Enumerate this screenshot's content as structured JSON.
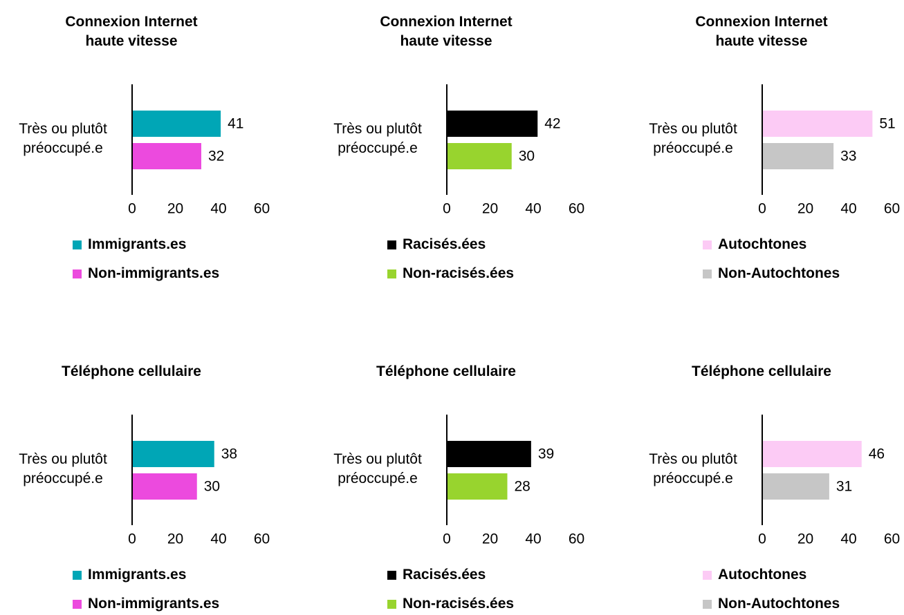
{
  "chart_data": [
    {
      "type": "bar",
      "orientation": "horizontal",
      "title": "Connexion Internet haute vitesse",
      "categories": [
        "Très ou plutôt préoccupé.e"
      ],
      "series": [
        {
          "name": "Immigrants.es",
          "color": "#00a6b6",
          "values": [
            41
          ]
        },
        {
          "name": "Non-immigrants.es",
          "color": "#ec4ade",
          "values": [
            32
          ]
        }
      ],
      "xlim": [
        0,
        60
      ],
      "xticks": [
        0,
        20,
        40,
        60
      ]
    },
    {
      "type": "bar",
      "orientation": "horizontal",
      "title": "Connexion Internet haute vitesse",
      "categories": [
        "Très ou plutôt préoccupé.e"
      ],
      "series": [
        {
          "name": "Racisés.ées",
          "color": "#000000",
          "values": [
            42
          ]
        },
        {
          "name": "Non-racisés.ées",
          "color": "#98d42e",
          "values": [
            30
          ]
        }
      ],
      "xlim": [
        0,
        60
      ],
      "xticks": [
        0,
        20,
        40,
        60
      ]
    },
    {
      "type": "bar",
      "orientation": "horizontal",
      "title": "Connexion Internet haute vitesse",
      "categories": [
        "Très ou plutôt préoccupé.e"
      ],
      "series": [
        {
          "name": "Autochtones",
          "color": "#fccbf5",
          "values": [
            51
          ]
        },
        {
          "name": "Non-Autochtones",
          "color": "#c6c6c6",
          "values": [
            33
          ]
        }
      ],
      "xlim": [
        0,
        60
      ],
      "xticks": [
        0,
        20,
        40,
        60
      ]
    },
    {
      "type": "bar",
      "orientation": "horizontal",
      "title": "Téléphone cellulaire",
      "categories": [
        "Très ou plutôt préoccupé.e"
      ],
      "series": [
        {
          "name": "Immigrants.es",
          "color": "#00a6b6",
          "values": [
            38
          ]
        },
        {
          "name": "Non-immigrants.es",
          "color": "#ec4ade",
          "values": [
            30
          ]
        }
      ],
      "xlim": [
        0,
        60
      ],
      "xticks": [
        0,
        20,
        40,
        60
      ]
    },
    {
      "type": "bar",
      "orientation": "horizontal",
      "title": "Téléphone cellulaire",
      "categories": [
        "Très ou plutôt préoccupé.e"
      ],
      "series": [
        {
          "name": "Racisés.ées",
          "color": "#000000",
          "values": [
            39
          ]
        },
        {
          "name": "Non-racisés.ées",
          "color": "#98d42e",
          "values": [
            28
          ]
        }
      ],
      "xlim": [
        0,
        60
      ],
      "xticks": [
        0,
        20,
        40,
        60
      ]
    },
    {
      "type": "bar",
      "orientation": "horizontal",
      "title": "Téléphone cellulaire",
      "categories": [
        "Très ou plutôt préoccupé.e"
      ],
      "series": [
        {
          "name": "Autochtones",
          "color": "#fccbf5",
          "values": [
            46
          ]
        },
        {
          "name": "Non-Autochtones",
          "color": "#c6c6c6",
          "values": [
            31
          ]
        }
      ],
      "xlim": [
        0,
        60
      ],
      "xticks": [
        0,
        20,
        40,
        60
      ]
    }
  ]
}
